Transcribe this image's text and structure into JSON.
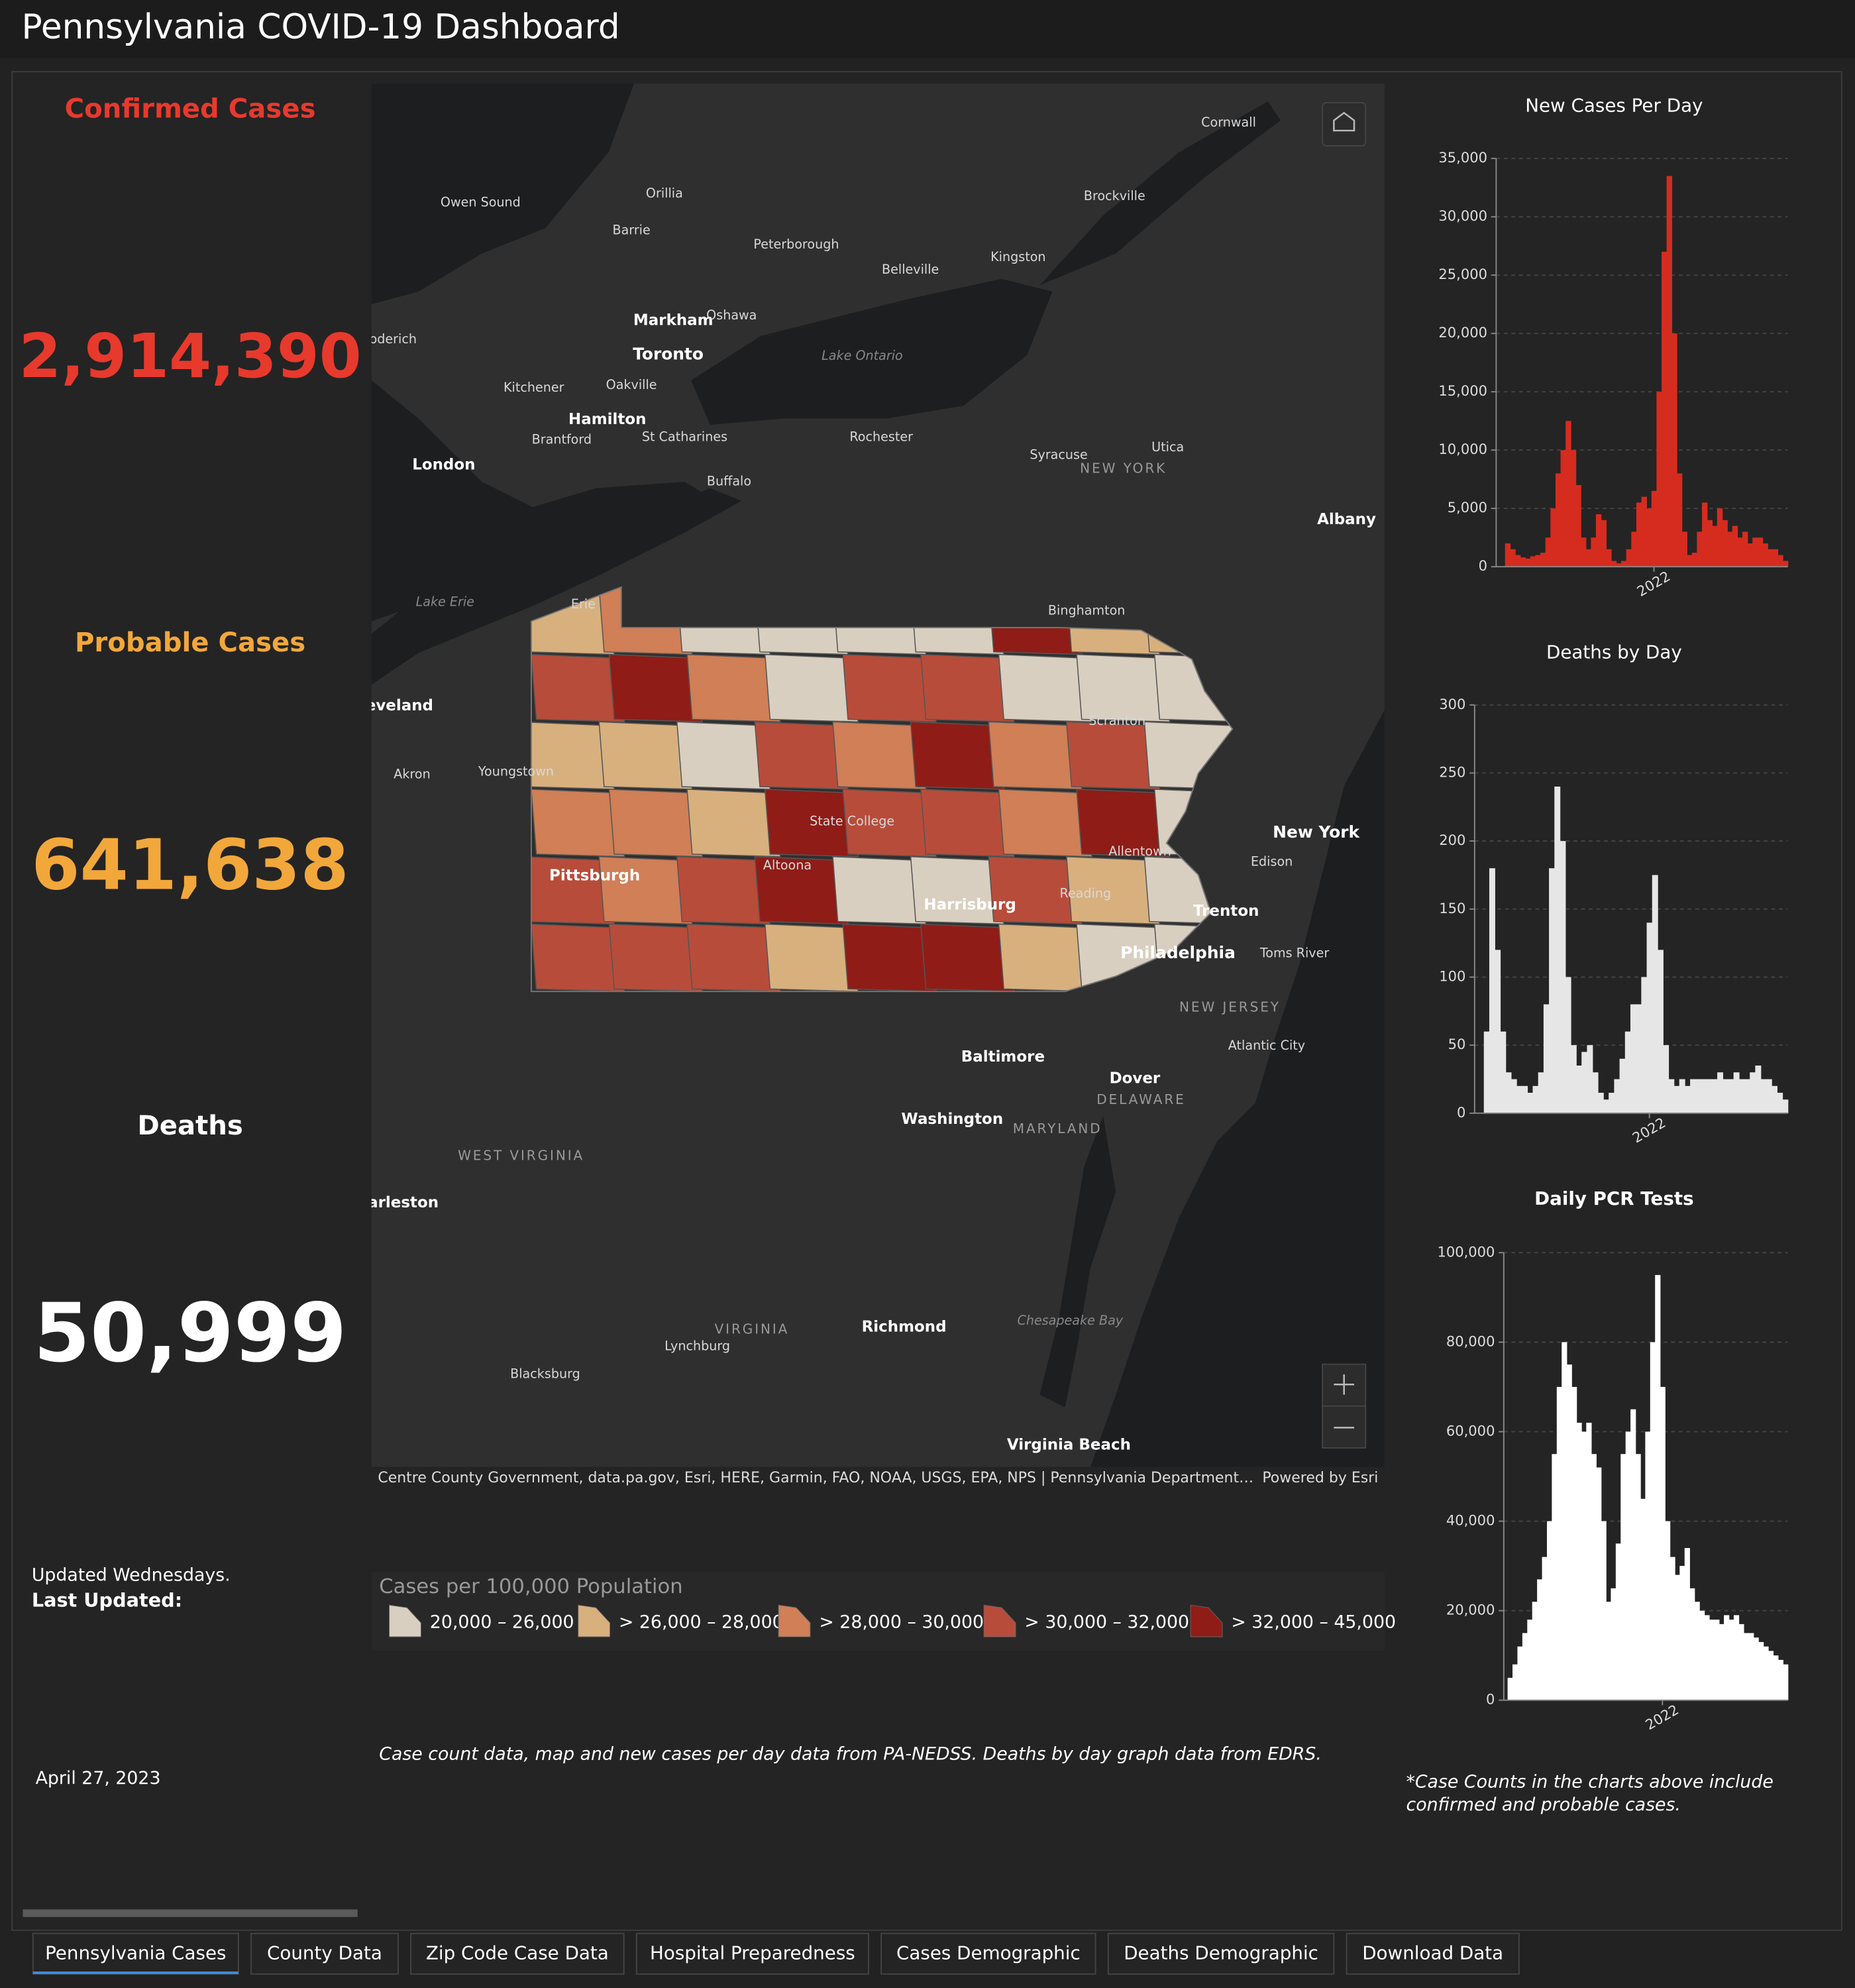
{
  "header": {
    "title": "Pennsylvania COVID-19 Dashboard"
  },
  "kpis": [
    {
      "label": "Confirmed Cases",
      "value": "2,914,390",
      "color": "#e8392d"
    },
    {
      "label": "Probable Cases",
      "value": "641,638",
      "color": "#f2a73b"
    },
    {
      "label": "Deaths",
      "value": "50,999",
      "color": "#ffffff"
    }
  ],
  "updated": {
    "note": "Updated Wednesdays.",
    "label": "Last Updated:",
    "date": "April 27, 2023"
  },
  "map": {
    "places": [
      "Cornwall",
      "Owen Sound",
      "Orillia",
      "Brockville",
      "Barrie",
      "Peterborough",
      "Belleville",
      "Kingston",
      "Markham",
      "Oshawa",
      "oderich",
      "Toronto",
      "Lake Ontario",
      "Kitchener",
      "Oakville",
      "Hamilton",
      "St Catharines",
      "Brantford",
      "Rochester",
      "Syracuse",
      "Utica",
      "NEW YORK",
      "London",
      "Buffalo",
      "Albany",
      "Lake Erie",
      "Erie",
      "Binghamton",
      "eveland",
      "Scranton",
      "Akron",
      "Youngstown",
      "State College",
      "New York",
      "Edison",
      "Allentown",
      "Pittsburgh",
      "Altoona",
      "Reading",
      "Harrisburg",
      "Trenton",
      "Philadelphia",
      "Toms River",
      "NEW JERSEY",
      "Atlantic City",
      "Baltimore",
      "Dover",
      "DELAWARE",
      "Washington",
      "MARYLAND",
      "WEST VIRGINIA",
      "arleston",
      "VIRGINIA",
      "Richmond",
      "Chesapeake Bay",
      "Lynchburg",
      "Blacksburg",
      "Virginia Beach"
    ],
    "attribution": "Centre County Government, data.pa.gov, Esri, HERE, Garmin, FAO, NOAA, USGS, EPA, NPS | Pennsylvania Department…",
    "powered_by": "Powered by Esri"
  },
  "legend": {
    "title": "Cases per 100,000 Population",
    "items": [
      {
        "label": "20,000 – 26,000",
        "color": "#d9cfc0"
      },
      {
        "label": "> 26,000 – 28,000",
        "color": "#d8b07e"
      },
      {
        "label": "> 28,000 – 30,000",
        "color": "#d07f57"
      },
      {
        "label": "> 30,000 – 32,000",
        "color": "#b84c3a"
      },
      {
        "label": "> 32,000 – 45,000",
        "color": "#8f1c17"
      }
    ]
  },
  "source_note": "Case count data, map and new cases per day data from PA-NEDSS.  Deaths by day graph data from EDRS.",
  "chart_data": [
    {
      "type": "bar",
      "title": "New Cases Per Day",
      "color": "#d62c1f",
      "grid": true,
      "categories": [
        null,
        null,
        null,
        null,
        null,
        null,
        null,
        null,
        null,
        null,
        null,
        null,
        null,
        null,
        null,
        null,
        null,
        null,
        null,
        null,
        null,
        null,
        null,
        null,
        null,
        null,
        null,
        null,
        null,
        null,
        "2022",
        null,
        null,
        null,
        null,
        null,
        null,
        null,
        null,
        null,
        null,
        null,
        null,
        null,
        null,
        null,
        null,
        null,
        null,
        null,
        null,
        null,
        null,
        null,
        null,
        null,
        null
      ],
      "values": [
        0,
        2000,
        1500,
        1000,
        800,
        700,
        900,
        1000,
        1200,
        2500,
        5000,
        8000,
        10000,
        12500,
        10000,
        7000,
        2500,
        1500,
        2500,
        4500,
        4000,
        1500,
        500,
        300,
        500,
        1500,
        3000,
        5500,
        6000,
        5000,
        6500,
        15000,
        27000,
        33500,
        20000,
        8000,
        3000,
        1000,
        1200,
        3000,
        5500,
        4000,
        3500,
        5000,
        4000,
        3000,
        3500,
        2500,
        3000,
        2000,
        2500,
        2500,
        2000,
        1500,
        1500,
        1000,
        500
      ],
      "ylim": [
        0,
        35000
      ],
      "yticks": [
        0,
        {
          "value": 5000,
          "label": "5,000"
        },
        {
          "value": 10000,
          "label": "10,000"
        },
        {
          "value": 15000,
          "label": "15,000"
        },
        {
          "value": 20000,
          "label": "20,000"
        },
        {
          "value": 25000,
          "label": "25,000"
        },
        {
          "value": 30000,
          "label": "30,000"
        },
        {
          "value": 35000,
          "label": "35,000"
        }
      ]
    },
    {
      "type": "bar",
      "title": "Deaths by Day",
      "color": "#e6e6e6",
      "grid": true,
      "categories": [
        null,
        null,
        null,
        null,
        null,
        null,
        null,
        null,
        null,
        null,
        null,
        null,
        null,
        null,
        null,
        null,
        null,
        null,
        null,
        null,
        null,
        null,
        null,
        null,
        null,
        null,
        null,
        null,
        null,
        null,
        null,
        "2022",
        null,
        null,
        null,
        null,
        null,
        null,
        null,
        null,
        null,
        null,
        null,
        null,
        null,
        null,
        null,
        null,
        null,
        null,
        null,
        null,
        null,
        null,
        null,
        null,
        null
      ],
      "values": [
        0,
        60,
        180,
        120,
        60,
        30,
        25,
        20,
        20,
        15,
        20,
        30,
        80,
        180,
        240,
        200,
        100,
        50,
        35,
        45,
        50,
        30,
        15,
        10,
        15,
        25,
        40,
        60,
        80,
        80,
        100,
        140,
        175,
        120,
        50,
        25,
        20,
        25,
        20,
        25,
        25,
        25,
        25,
        25,
        30,
        25,
        25,
        30,
        25,
        25,
        30,
        35,
        25,
        25,
        20,
        15,
        10
      ],
      "ylim": [
        0,
        300
      ],
      "yticks": [
        0,
        50,
        100,
        150,
        200,
        250,
        300
      ]
    },
    {
      "type": "bar",
      "title": "Daily PCR Tests",
      "color": "#ffffff",
      "grid": true,
      "categories": [
        null,
        null,
        null,
        null,
        null,
        null,
        null,
        null,
        null,
        null,
        null,
        null,
        null,
        null,
        null,
        null,
        null,
        null,
        null,
        null,
        null,
        null,
        null,
        null,
        null,
        null,
        null,
        null,
        null,
        null,
        null,
        "2022",
        null,
        null,
        null,
        null,
        null,
        null,
        null,
        null,
        null,
        null,
        null,
        null,
        null,
        null,
        null,
        null,
        null,
        null,
        null,
        null,
        null,
        null,
        null,
        null,
        null
      ],
      "values": [
        5000,
        8000,
        12000,
        15000,
        18000,
        22000,
        27000,
        32000,
        40000,
        55000,
        70000,
        80000,
        75000,
        70000,
        62000,
        60000,
        62000,
        55000,
        52000,
        40000,
        22000,
        25000,
        35000,
        55000,
        60000,
        65000,
        55000,
        45000,
        60000,
        80000,
        95000,
        70000,
        40000,
        32000,
        28000,
        30000,
        34000,
        25000,
        22000,
        20000,
        19000,
        18000,
        18000,
        17000,
        19000,
        18000,
        19000,
        17000,
        15000,
        15000,
        14000,
        13000,
        12000,
        11000,
        10000,
        9000,
        8000
      ],
      "ylim": [
        0,
        100000
      ],
      "yticks": [
        0,
        {
          "value": 20000,
          "label": "20,000"
        },
        {
          "value": 40000,
          "label": "40,000"
        },
        {
          "value": 60000,
          "label": "60,000"
        },
        {
          "value": 80000,
          "label": "80,000"
        },
        {
          "value": 100000,
          "label": "100,000"
        }
      ]
    }
  ],
  "footnote": [
    "*Case Counts in the charts above include",
    "confirmed and probable cases."
  ],
  "tabs": [
    "Pennsylvania Cases",
    "County Data",
    "Zip Code Case Data",
    "Hospital Preparedness",
    "Cases Demographic",
    "Deaths Demographic",
    "Download Data"
  ]
}
